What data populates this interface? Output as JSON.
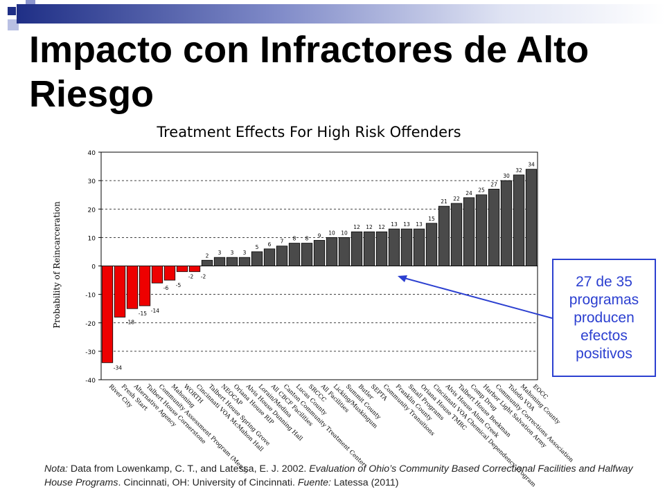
{
  "slide": {
    "title": "Impacto con Infractores de Alto Riesgo",
    "accent_color": "#1f2f86",
    "callout_text": "27 de 35 programas producen efectos positivos",
    "callout_color": "#2b3fd0",
    "note": {
      "label": "Nota:",
      "part1": " Data from Lowenkamp, C. T., and Latessa, E. J. 2002. ",
      "title_italic": "Evaluation of Ohio’s Community Based Correctional Facilities and Halfway House Programs",
      "part2": ". Cincinnati, OH: University of Cincinnati. ",
      "source_label": "Fuente:",
      "source": " Latessa (2011)"
    }
  },
  "chart_data": {
    "type": "bar",
    "title": "Treatment Effects For High Risk Offenders",
    "xlabel": "",
    "ylabel": "Probability of Reincarceration",
    "ylim": [
      -40,
      40
    ],
    "yticks": [
      40,
      30,
      20,
      10,
      0,
      -10,
      -20,
      -30,
      -40
    ],
    "grid": "dashed horizontal",
    "negative_color": "#ee0000",
    "positive_color": "#4a4a4a",
    "categories": [
      "River City",
      "Fresh Start",
      "Alternative Agency",
      "Talbert House Cornerstone",
      "Community Assessment Program (Men's)",
      "Mahoning",
      "WORTH",
      "Cincinnati VOA McMahon Hall",
      "Talbert House Spring Grove",
      "NEOCAP",
      "Oriana House RIP",
      "Alvis House Dunning Hall",
      "Lorain/Medina",
      "All CBCF Facilities",
      "Canton Community Treatment Center",
      "Lucas County",
      "SRCCC",
      "All Facilities",
      "Licking/Muskingum",
      "Summit County",
      "Butler",
      "SEPTA",
      "Community Transitions",
      "Franklin County",
      "Small Programs",
      "Oriana House TMRC",
      "Cincinnati VOA Chemical Dependency Program",
      "Alvis House Alum Creek",
      "Talbert House Beekman",
      "Comp Drug",
      "Harbor Light Salvation Army",
      "Community Corrections Association",
      "Toledo VOA",
      "Mahoning County",
      "EOCC"
    ],
    "values": [
      -34,
      -18,
      -15,
      -14,
      -6,
      -5,
      -2,
      -2,
      2,
      3,
      3,
      3,
      5,
      6,
      7,
      8,
      8,
      9,
      10,
      10,
      12,
      12,
      12,
      13,
      13,
      13,
      15,
      21,
      22,
      24,
      25,
      27,
      30,
      32,
      34
    ]
  }
}
